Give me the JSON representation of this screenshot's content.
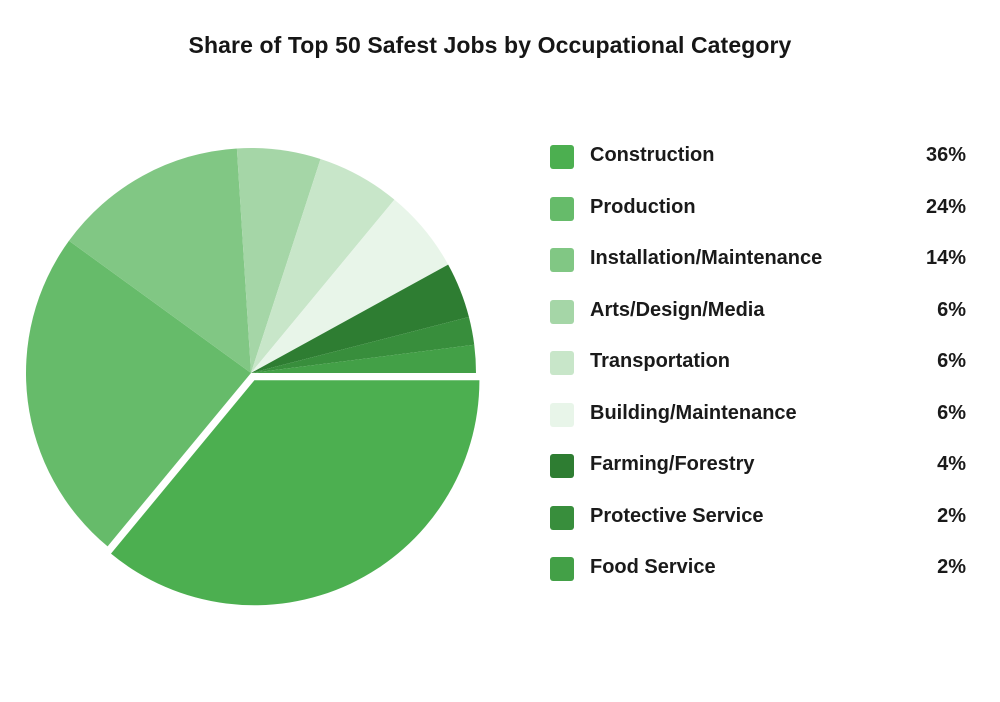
{
  "chart_data": {
    "type": "pie",
    "title": "Share of Top 50 Safest Jobs by Occupational Category",
    "unit": "%",
    "exploded_slice": "Construction",
    "legend_position": "right",
    "slices": [
      {
        "label": "Construction",
        "value": 36,
        "display": "36%",
        "color": "#4caf50"
      },
      {
        "label": "Production",
        "value": 24,
        "display": "24%",
        "color": "#66bb6a"
      },
      {
        "label": "Installation/Maintenance",
        "value": 14,
        "display": "14%",
        "color": "#81c784"
      },
      {
        "label": "Arts/Design/Media",
        "value": 6,
        "display": "6%",
        "color": "#a5d6a7"
      },
      {
        "label": "Transportation",
        "value": 6,
        "display": "6%",
        "color": "#c8e6c9"
      },
      {
        "label": "Building/Maintenance",
        "value": 6,
        "display": "6%",
        "color": "#e8f5e9"
      },
      {
        "label": "Farming/Forestry",
        "value": 4,
        "display": "4%",
        "color": "#2e7d32"
      },
      {
        "label": "Protective Service",
        "value": 2,
        "display": "2%",
        "color": "#388e3c"
      },
      {
        "label": "Food Service",
        "value": 2,
        "display": "2%",
        "color": "#43a047"
      }
    ]
  }
}
